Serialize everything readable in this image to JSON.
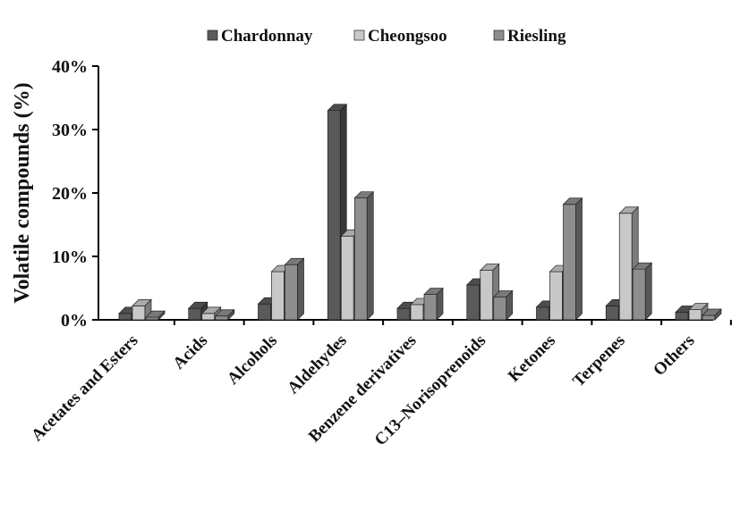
{
  "chart_data": {
    "type": "bar",
    "style": "3d-clustered",
    "categories": [
      "Acetates and Esters",
      "Acids",
      "Alcohols",
      "Aldehydes",
      "Benzene derivatives",
      "C13–Norisoprenoids",
      "Ketones",
      "Terpenes",
      "Others"
    ],
    "series": [
      {
        "name": "Chardonnay",
        "color": "#5a5a5a",
        "values": [
          1.0,
          1.8,
          2.5,
          33.0,
          1.8,
          5.5,
          2.0,
          2.2,
          1.2
        ]
      },
      {
        "name": "Cheongsoo",
        "color": "#c8c8c8",
        "values": [
          2.2,
          1.0,
          7.6,
          13.2,
          2.4,
          7.8,
          7.6,
          16.8,
          1.6
        ]
      },
      {
        "name": "Riesling",
        "color": "#8e8e8e",
        "values": [
          0.4,
          0.6,
          8.7,
          19.2,
          4.0,
          3.6,
          18.2,
          8.0,
          0.7
        ]
      }
    ],
    "ylabel": "Volatile compounds (%)",
    "xlabel": "",
    "ylim": [
      0,
      40
    ],
    "yticks": [
      "0%",
      "10%",
      "20%",
      "30%",
      "40%"
    ],
    "yticks_values": [
      0,
      10,
      20,
      30,
      40
    ],
    "grid": false,
    "legend_position": "top-center"
  }
}
